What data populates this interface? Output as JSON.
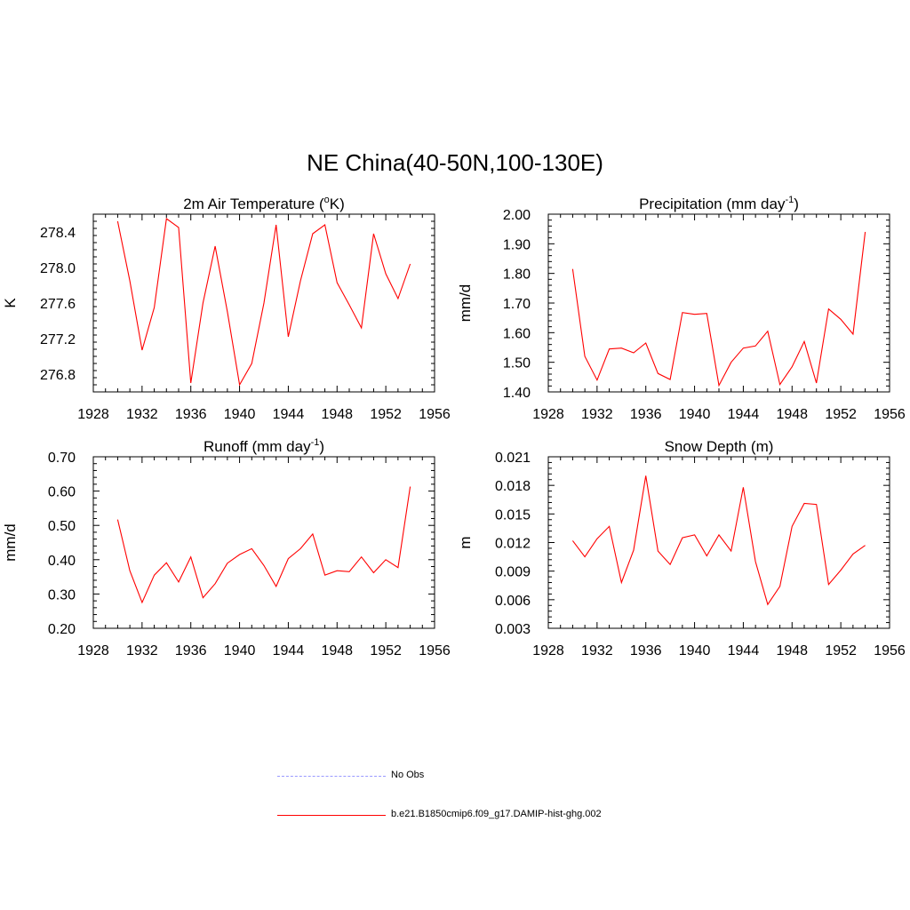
{
  "figure": {
    "title": "NE China(40-50N,100-130E)"
  },
  "colors": {
    "model_line": "#ff0000",
    "obs_line": "#9999ff",
    "axis": "#000000"
  },
  "legend": {
    "items": [
      {
        "label": "No Obs",
        "style": "dashed",
        "color": "#9999ff"
      },
      {
        "label": "b.e21.B1850cmip6.f09_g17.DAMIP-hist-ghg.002",
        "style": "solid",
        "color": "#ff0000"
      }
    ]
  },
  "chart_data": [
    {
      "type": "line",
      "title": "2m Air Temperature (",
      "title_sup": "o",
      "title_after": "K)",
      "ylabel": "K",
      "xlim": [
        1928,
        1956
      ],
      "xticks": [
        1928,
        1932,
        1936,
        1940,
        1944,
        1948,
        1952,
        1956
      ],
      "ylim": [
        276.6,
        278.6
      ],
      "yticks": [
        276.8,
        277.2,
        277.6,
        278.0,
        278.4
      ],
      "ytick_labels": [
        "276.8",
        "277.2",
        "277.6",
        "278.0",
        "278.4"
      ],
      "series": [
        {
          "name": "b.e21.B1850cmip6.f09_g17.DAMIP-hist-ghg.002",
          "x": [
            1930,
            1931,
            1932,
            1933,
            1934,
            1935,
            1936,
            1937,
            1938,
            1939,
            1940,
            1941,
            1942,
            1943,
            1944,
            1945,
            1946,
            1947,
            1948,
            1949,
            1950,
            1951,
            1952,
            1953,
            1954
          ],
          "y": [
            278.52,
            277.85,
            277.07,
            277.55,
            278.55,
            278.45,
            276.7,
            277.6,
            278.24,
            277.5,
            276.68,
            276.92,
            277.6,
            278.48,
            277.22,
            277.85,
            278.38,
            278.48,
            277.83,
            277.58,
            277.32,
            278.38,
            277.93,
            277.65,
            278.04
          ]
        }
      ]
    },
    {
      "type": "line",
      "title": "Precipitation (mm day",
      "title_sup": "-1",
      "title_after": ")",
      "ylabel": "mm/d",
      "xlim": [
        1928,
        1956
      ],
      "xticks": [
        1928,
        1932,
        1936,
        1940,
        1944,
        1948,
        1952,
        1956
      ],
      "ylim": [
        1.4,
        2.0
      ],
      "yticks": [
        1.4,
        1.5,
        1.6,
        1.7,
        1.8,
        1.9,
        2.0
      ],
      "ytick_labels": [
        "1.40",
        "1.50",
        "1.60",
        "1.70",
        "1.80",
        "1.90",
        "2.00"
      ],
      "series": [
        {
          "name": "b.e21.B1850cmip6.f09_g17.DAMIP-hist-ghg.002",
          "x": [
            1930,
            1931,
            1932,
            1933,
            1934,
            1935,
            1936,
            1937,
            1938,
            1939,
            1940,
            1941,
            1942,
            1943,
            1944,
            1945,
            1946,
            1947,
            1948,
            1949,
            1950,
            1951,
            1952,
            1953,
            1954
          ],
          "y": [
            1.815,
            1.52,
            1.44,
            1.545,
            1.548,
            1.532,
            1.565,
            1.462,
            1.442,
            1.668,
            1.662,
            1.665,
            1.422,
            1.5,
            1.548,
            1.555,
            1.605,
            1.425,
            1.485,
            1.57,
            1.43,
            1.68,
            1.645,
            1.595,
            1.94
          ]
        }
      ]
    },
    {
      "type": "line",
      "title": "Runoff (mm day",
      "title_sup": "-1",
      "title_after": ")",
      "ylabel": "mm/d",
      "xlim": [
        1928,
        1956
      ],
      "xticks": [
        1928,
        1932,
        1936,
        1940,
        1944,
        1948,
        1952,
        1956
      ],
      "ylim": [
        0.2,
        0.7
      ],
      "yticks": [
        0.2,
        0.3,
        0.4,
        0.5,
        0.6,
        0.7
      ],
      "ytick_labels": [
        "0.20",
        "0.30",
        "0.40",
        "0.50",
        "0.60",
        "0.70"
      ],
      "series": [
        {
          "name": "b.e21.B1850cmip6.f09_g17.DAMIP-hist-ghg.002",
          "x": [
            1930,
            1931,
            1932,
            1933,
            1934,
            1935,
            1936,
            1937,
            1938,
            1939,
            1940,
            1941,
            1942,
            1943,
            1944,
            1945,
            1946,
            1947,
            1948,
            1949,
            1950,
            1951,
            1952,
            1953,
            1954
          ],
          "y": [
            0.517,
            0.368,
            0.275,
            0.355,
            0.391,
            0.335,
            0.408,
            0.289,
            0.33,
            0.39,
            0.415,
            0.432,
            0.383,
            0.322,
            0.403,
            0.432,
            0.475,
            0.355,
            0.368,
            0.365,
            0.408,
            0.362,
            0.4,
            0.377,
            0.613
          ]
        }
      ]
    },
    {
      "type": "line",
      "title": "Snow Depth (m)",
      "title_sup": "",
      "title_after": "",
      "ylabel": "m",
      "xlim": [
        1928,
        1956
      ],
      "xticks": [
        1928,
        1932,
        1936,
        1940,
        1944,
        1948,
        1952,
        1956
      ],
      "ylim": [
        0.003,
        0.021
      ],
      "yticks": [
        0.003,
        0.006,
        0.009,
        0.012,
        0.015,
        0.018,
        0.021
      ],
      "ytick_labels": [
        "0.003",
        "0.006",
        "0.009",
        "0.012",
        "0.015",
        "0.018",
        "0.021"
      ],
      "series": [
        {
          "name": "b.e21.B1850cmip6.f09_g17.DAMIP-hist-ghg.002",
          "x": [
            1930,
            1931,
            1932,
            1933,
            1934,
            1935,
            1936,
            1937,
            1938,
            1939,
            1940,
            1941,
            1942,
            1943,
            1944,
            1945,
            1946,
            1947,
            1948,
            1949,
            1950,
            1951,
            1952,
            1953,
            1954
          ],
          "y": [
            0.0122,
            0.0105,
            0.0124,
            0.0137,
            0.0078,
            0.0112,
            0.019,
            0.0111,
            0.0097,
            0.0125,
            0.0128,
            0.0106,
            0.0128,
            0.0111,
            0.0178,
            0.01,
            0.0055,
            0.0074,
            0.0137,
            0.0161,
            0.016,
            0.0076,
            0.0091,
            0.0108,
            0.0117
          ]
        }
      ]
    }
  ]
}
